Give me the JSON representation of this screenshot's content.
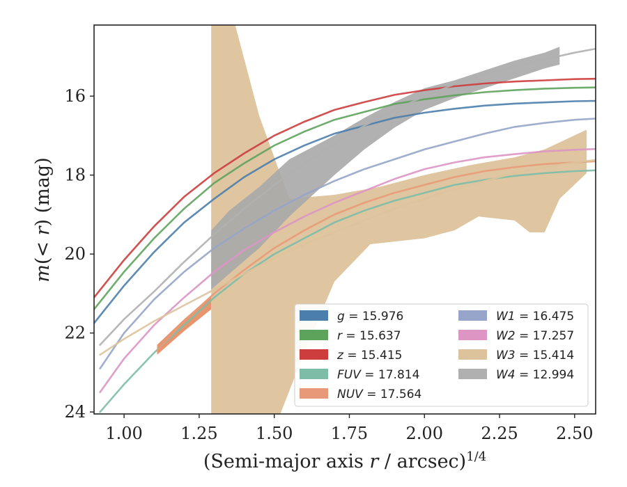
{
  "chart_data": {
    "type": "line",
    "xlabel": "(Semi-major axis r / arcsec)^{1/4}",
    "ylabel": "m(< r) (mag)",
    "xlim": [
      0.9,
      2.57
    ],
    "ylim": [
      24.05,
      14.2
    ],
    "y_inverted": true,
    "grid": false,
    "legend_position": "lower-right",
    "xticks": [
      "1.00",
      "1.25",
      "1.50",
      "1.75",
      "2.00",
      "2.25",
      "2.50"
    ],
    "yticks": [
      "16",
      "18",
      "20",
      "22",
      "24"
    ],
    "series": [
      {
        "name": "g = 15.976",
        "color": "#4c7eac",
        "kind": "curve",
        "points": [
          [
            0.9,
            21.75
          ],
          [
            1.0,
            20.8
          ],
          [
            1.1,
            19.95
          ],
          [
            1.2,
            19.2
          ],
          [
            1.3,
            18.6
          ],
          [
            1.4,
            18.05
          ],
          [
            1.5,
            17.6
          ],
          [
            1.6,
            17.25
          ],
          [
            1.7,
            16.95
          ],
          [
            1.8,
            16.75
          ],
          [
            1.9,
            16.55
          ],
          [
            2.0,
            16.42
          ],
          [
            2.1,
            16.32
          ],
          [
            2.2,
            16.24
          ],
          [
            2.3,
            16.19
          ],
          [
            2.4,
            16.16
          ],
          [
            2.5,
            16.13
          ],
          [
            2.57,
            16.12
          ]
        ]
      },
      {
        "name": "r = 15.637",
        "color": "#5ea35b",
        "kind": "curve",
        "points": [
          [
            0.9,
            21.4
          ],
          [
            1.0,
            20.45
          ],
          [
            1.1,
            19.6
          ],
          [
            1.2,
            18.85
          ],
          [
            1.3,
            18.2
          ],
          [
            1.4,
            17.7
          ],
          [
            1.5,
            17.25
          ],
          [
            1.6,
            16.9
          ],
          [
            1.7,
            16.6
          ],
          [
            1.8,
            16.4
          ],
          [
            1.9,
            16.2
          ],
          [
            2.0,
            16.08
          ],
          [
            2.1,
            15.98
          ],
          [
            2.2,
            15.9
          ],
          [
            2.3,
            15.85
          ],
          [
            2.4,
            15.81
          ],
          [
            2.5,
            15.79
          ],
          [
            2.57,
            15.78
          ]
        ]
      },
      {
        "name": "z = 15.415",
        "color": "#cd3d3d",
        "kind": "curve",
        "points": [
          [
            0.9,
            21.1
          ],
          [
            1.0,
            20.15
          ],
          [
            1.1,
            19.3
          ],
          [
            1.2,
            18.55
          ],
          [
            1.3,
            17.95
          ],
          [
            1.4,
            17.45
          ],
          [
            1.5,
            17.0
          ],
          [
            1.6,
            16.65
          ],
          [
            1.7,
            16.35
          ],
          [
            1.8,
            16.15
          ],
          [
            1.9,
            15.97
          ],
          [
            2.0,
            15.85
          ],
          [
            2.1,
            15.75
          ],
          [
            2.2,
            15.68
          ],
          [
            2.3,
            15.63
          ],
          [
            2.4,
            15.6
          ],
          [
            2.5,
            15.57
          ],
          [
            2.57,
            15.56
          ]
        ]
      },
      {
        "name": "FUV = 17.814",
        "color": "#7dbda8",
        "kind": "curve",
        "points": [
          [
            0.92,
            24.0
          ],
          [
            1.0,
            23.3
          ],
          [
            1.1,
            22.5
          ],
          [
            1.2,
            21.8
          ],
          [
            1.3,
            21.1
          ],
          [
            1.4,
            20.5
          ],
          [
            1.5,
            20.0
          ],
          [
            1.6,
            19.6
          ],
          [
            1.7,
            19.2
          ],
          [
            1.8,
            18.9
          ],
          [
            1.9,
            18.65
          ],
          [
            2.0,
            18.45
          ],
          [
            2.1,
            18.25
          ],
          [
            2.2,
            18.12
          ],
          [
            2.3,
            18.02
          ],
          [
            2.4,
            17.95
          ],
          [
            2.5,
            17.9
          ],
          [
            2.57,
            17.88
          ]
        ]
      },
      {
        "name": "NUV = 17.564",
        "color": "#e89a78",
        "kind": "curve",
        "points": [
          [
            1.11,
            22.45
          ],
          [
            1.2,
            21.7
          ],
          [
            1.3,
            21.0
          ],
          [
            1.4,
            20.4
          ],
          [
            1.5,
            19.85
          ],
          [
            1.6,
            19.4
          ],
          [
            1.7,
            19.0
          ],
          [
            1.8,
            18.7
          ],
          [
            1.9,
            18.45
          ],
          [
            2.0,
            18.25
          ],
          [
            2.1,
            18.05
          ],
          [
            2.2,
            17.9
          ],
          [
            2.3,
            17.8
          ],
          [
            2.4,
            17.72
          ],
          [
            2.5,
            17.68
          ],
          [
            2.57,
            17.65
          ]
        ]
      },
      {
        "name": "W1 = 16.475",
        "color": "#96a5c9",
        "kind": "curve",
        "points": [
          [
            0.92,
            22.9
          ],
          [
            1.0,
            22.0
          ],
          [
            1.1,
            21.15
          ],
          [
            1.2,
            20.45
          ],
          [
            1.3,
            19.85
          ],
          [
            1.4,
            19.35
          ],
          [
            1.5,
            18.9
          ],
          [
            1.6,
            18.5
          ],
          [
            1.7,
            18.15
          ],
          [
            1.8,
            17.85
          ],
          [
            1.9,
            17.6
          ],
          [
            2.0,
            17.35
          ],
          [
            2.1,
            17.15
          ],
          [
            2.2,
            16.95
          ],
          [
            2.3,
            16.78
          ],
          [
            2.4,
            16.68
          ],
          [
            2.5,
            16.6
          ],
          [
            2.57,
            16.57
          ]
        ]
      },
      {
        "name": "W2 = 17.257",
        "color": "#dd95c4",
        "kind": "curve",
        "points": [
          [
            0.92,
            23.5
          ],
          [
            1.0,
            22.65
          ],
          [
            1.1,
            21.8
          ],
          [
            1.2,
            21.1
          ],
          [
            1.3,
            20.45
          ],
          [
            1.4,
            19.9
          ],
          [
            1.5,
            19.45
          ],
          [
            1.6,
            19.05
          ],
          [
            1.7,
            18.7
          ],
          [
            1.8,
            18.4
          ],
          [
            1.9,
            18.1
          ],
          [
            2.0,
            17.85
          ],
          [
            2.1,
            17.68
          ],
          [
            2.2,
            17.55
          ],
          [
            2.3,
            17.47
          ],
          [
            2.4,
            17.4
          ],
          [
            2.5,
            17.36
          ],
          [
            2.57,
            17.34
          ]
        ]
      },
      {
        "name": "W3 = 15.414",
        "color": "#ddc39b",
        "kind": "curve",
        "points": [
          [
            0.92,
            22.55
          ],
          [
            1.0,
            22.15
          ],
          [
            1.1,
            21.7
          ],
          [
            1.2,
            21.3
          ],
          [
            1.3,
            20.9
          ],
          [
            1.4,
            20.5
          ],
          [
            1.5,
            20.1
          ],
          [
            1.6,
            19.75
          ],
          [
            1.7,
            19.45
          ],
          [
            1.8,
            19.15
          ],
          [
            1.9,
            18.85
          ],
          [
            2.0,
            18.6
          ],
          [
            2.1,
            18.35
          ],
          [
            2.2,
            18.15
          ],
          [
            2.3,
            17.95
          ],
          [
            2.4,
            17.8
          ],
          [
            2.5,
            17.68
          ],
          [
            2.57,
            17.62
          ]
        ]
      },
      {
        "name": "W4 = 12.994",
        "color": "#b0b0b0",
        "kind": "curve",
        "points": [
          [
            0.92,
            22.3
          ],
          [
            1.0,
            21.65
          ],
          [
            1.1,
            20.95
          ],
          [
            1.2,
            20.2
          ],
          [
            1.3,
            19.5
          ],
          [
            1.4,
            18.85
          ],
          [
            1.5,
            18.25
          ],
          [
            1.6,
            17.7
          ],
          [
            1.7,
            17.2
          ],
          [
            1.8,
            16.75
          ],
          [
            1.9,
            16.35
          ],
          [
            2.0,
            16.0
          ],
          [
            2.1,
            15.7
          ],
          [
            2.2,
            15.45
          ],
          [
            2.3,
            15.25
          ],
          [
            2.4,
            15.07
          ],
          [
            2.5,
            14.9
          ],
          [
            2.57,
            14.8
          ]
        ]
      }
    ],
    "bands": [
      {
        "name": "W3 = 15.414",
        "color": "#ddc39b",
        "opacity": 0.95,
        "upper": [
          [
            1.29,
            14.2
          ],
          [
            1.37,
            14.2
          ],
          [
            1.45,
            16.5
          ],
          [
            1.55,
            18.6
          ],
          [
            1.7,
            18.5
          ],
          [
            1.85,
            18.3
          ],
          [
            2.0,
            18.0
          ],
          [
            2.15,
            17.75
          ],
          [
            2.3,
            17.55
          ],
          [
            2.4,
            17.35
          ],
          [
            2.47,
            17.1
          ],
          [
            2.54,
            16.85
          ]
        ],
        "lower": [
          [
            1.29,
            24.05
          ],
          [
            1.52,
            24.05
          ],
          [
            1.6,
            22.5
          ],
          [
            1.7,
            20.7
          ],
          [
            1.82,
            19.75
          ],
          [
            2.0,
            19.6
          ],
          [
            2.1,
            19.4
          ],
          [
            2.18,
            19.05
          ],
          [
            2.3,
            19.15
          ],
          [
            2.35,
            19.45
          ],
          [
            2.4,
            19.45
          ],
          [
            2.45,
            18.6
          ],
          [
            2.54,
            17.95
          ]
        ]
      },
      {
        "name": "W4 = 12.994",
        "color": "#a8a8a8",
        "opacity": 0.9,
        "upper": [
          [
            1.29,
            19.4
          ],
          [
            1.35,
            18.9
          ],
          [
            1.45,
            18.3
          ],
          [
            1.55,
            17.6
          ],
          [
            1.7,
            17.0
          ],
          [
            1.8,
            16.55
          ],
          [
            1.9,
            16.15
          ],
          [
            2.0,
            15.8
          ],
          [
            2.1,
            15.6
          ],
          [
            2.2,
            15.35
          ],
          [
            2.3,
            15.1
          ],
          [
            2.4,
            14.9
          ],
          [
            2.45,
            14.75
          ]
        ],
        "lower": [
          [
            1.29,
            20.9
          ],
          [
            1.35,
            20.5
          ],
          [
            1.45,
            19.85
          ],
          [
            1.55,
            19.05
          ],
          [
            1.7,
            18.0
          ],
          [
            1.8,
            17.35
          ],
          [
            1.9,
            16.8
          ],
          [
            2.0,
            16.35
          ],
          [
            2.1,
            16.05
          ],
          [
            2.2,
            15.8
          ],
          [
            2.3,
            15.55
          ],
          [
            2.4,
            15.3
          ],
          [
            2.45,
            15.2
          ]
        ]
      },
      {
        "name": "NUV = 17.564",
        "color": "#e8956e",
        "opacity": 1.0,
        "upper": [
          [
            1.11,
            22.3
          ],
          [
            1.2,
            21.65
          ],
          [
            1.29,
            21.05
          ]
        ],
        "lower": [
          [
            1.11,
            22.55
          ],
          [
            1.2,
            21.95
          ],
          [
            1.29,
            21.4
          ]
        ]
      }
    ],
    "legend_columns": [
      [
        "g = 15.976",
        "r = 15.637",
        "z = 15.415",
        "FUV = 17.814",
        "NUV = 17.564"
      ],
      [
        "W1 = 16.475",
        "W2 = 17.257",
        "W3 = 15.414",
        "W4 = 12.994"
      ]
    ]
  },
  "legend": {
    "col1": [
      {
        "var": "g",
        "val": "= 15.976",
        "color": "#4c7eac"
      },
      {
        "var": "r",
        "val": "= 15.637",
        "color": "#5ea35b"
      },
      {
        "var": "z",
        "val": "= 15.415",
        "color": "#cd3d3d"
      },
      {
        "var": "FUV",
        "val": "= 17.814",
        "color": "#7dbda8"
      },
      {
        "var": "NUV",
        "val": "= 17.564",
        "color": "#e89a78"
      }
    ],
    "col2": [
      {
        "var": "W1",
        "val": "= 16.475",
        "color": "#96a5c9"
      },
      {
        "var": "W2",
        "val": "= 17.257",
        "color": "#dd95c4"
      },
      {
        "var": "W3",
        "val": "= 15.414",
        "color": "#ddc39b"
      },
      {
        "var": "W4",
        "val": "= 12.994",
        "color": "#b0b0b0"
      }
    ]
  }
}
